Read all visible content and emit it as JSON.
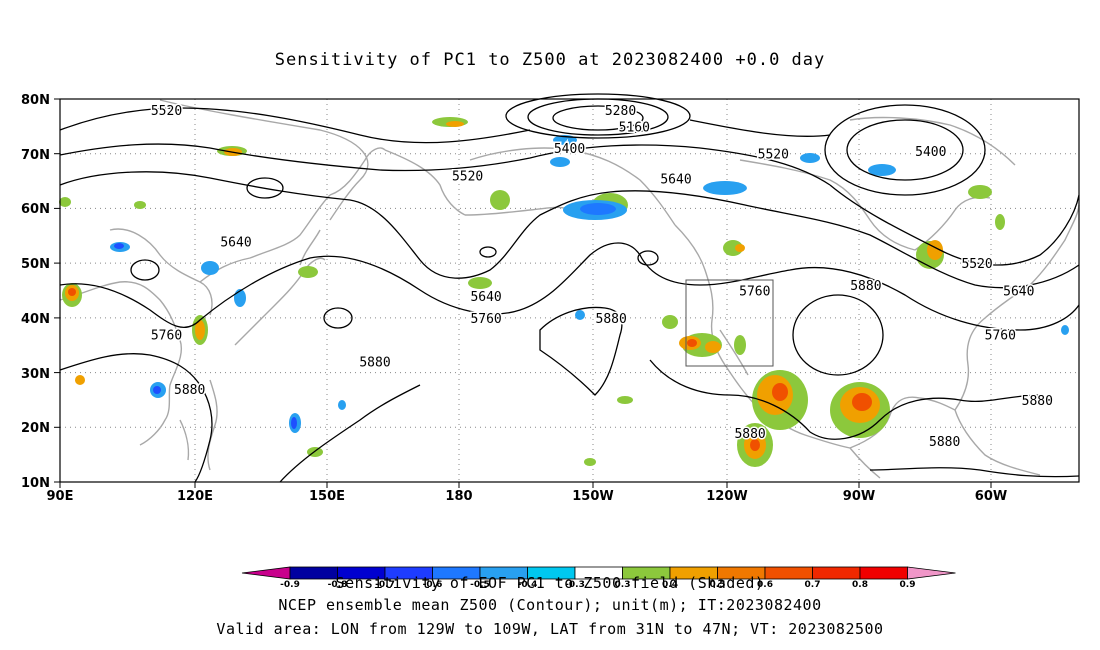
{
  "title": "Sensitivity of PC1 to Z500 at 2023082400 +0.0 day",
  "lat_labels": [
    "80N",
    "70N",
    "60N",
    "50N",
    "40N",
    "30N",
    "20N",
    "10N"
  ],
  "lon_labels": [
    "90E",
    "120E",
    "150E",
    "180",
    "150W",
    "120W",
    "90W",
    "60W"
  ],
  "contour_labels": [
    {
      "text": "5520",
      "lon": 113,
      "lat": 78
    },
    {
      "text": "5280",
      "lon": -149,
      "lat": 78
    },
    {
      "text": "5160",
      "lon": -146,
      "lat": 75
    },
    {
      "text": "5400",
      "lon": -160,
      "lat": 71
    },
    {
      "text": "5520",
      "lon": -116,
      "lat": 70
    },
    {
      "text": "5400",
      "lon": -82,
      "lat": 70.5
    },
    {
      "text": "5520",
      "lon": 178,
      "lat": 66
    },
    {
      "text": "5640",
      "lon": -137,
      "lat": 65.5
    },
    {
      "text": "5640",
      "lon": 128,
      "lat": 54
    },
    {
      "text": "5520",
      "lon": -72,
      "lat": 50
    },
    {
      "text": "5640",
      "lon": 182,
      "lat": 44
    },
    {
      "text": "5760",
      "lon": -120,
      "lat": 45
    },
    {
      "text": "5880",
      "lon": -96,
      "lat": 46
    },
    {
      "text": "5640",
      "lon": -63,
      "lat": 45
    },
    {
      "text": "5760",
      "lon": 113,
      "lat": 37
    },
    {
      "text": "5760",
      "lon": 182,
      "lat": 40
    },
    {
      "text": "5880",
      "lon": -151,
      "lat": 40
    },
    {
      "text": "5760",
      "lon": -67,
      "lat": 37
    },
    {
      "text": "5880",
      "lon": 158,
      "lat": 32
    },
    {
      "text": "5880",
      "lon": 118,
      "lat": 27
    },
    {
      "text": "5880",
      "lon": -59,
      "lat": 25
    },
    {
      "text": "5880",
      "lon": -121,
      "lat": 19
    },
    {
      "text": "5880",
      "lon": -79,
      "lat": 17.5
    }
  ],
  "colorbar": {
    "labels": [
      "-0.9",
      "-0.8",
      "-0.7",
      "-0.6",
      "-0.5",
      "-0.4",
      "-0.3",
      "0.3",
      "0.4",
      "0.5",
      "0.6",
      "0.7",
      "0.8",
      "0.9"
    ],
    "colors": [
      "#c8008c",
      "#0000a0",
      "#0000d0",
      "#1e3cff",
      "#1e78ff",
      "#28a0f0",
      "#00c8f0",
      "#ffffff",
      "#8cc83c",
      "#f0a000",
      "#f07800",
      "#f05000",
      "#f02800",
      "#f00000",
      "#f096c8"
    ],
    "caption": "Sensitivity of EOF PC1 to Z500 field (Shaded)"
  },
  "shading_colors": {
    "green": "#8cc83c",
    "orange": "#f0a000",
    "red_orange": "#f05000",
    "light_blue": "#28a0f0",
    "dark_blue": "#1e50ff"
  },
  "footer_line1": "NCEP ensemble mean Z500 (Contour); unit(m); IT:2023082400",
  "footer_line2": "Valid area: LON from 129W to 109W, LAT from 31N to 47N; VT: 2023082500"
}
